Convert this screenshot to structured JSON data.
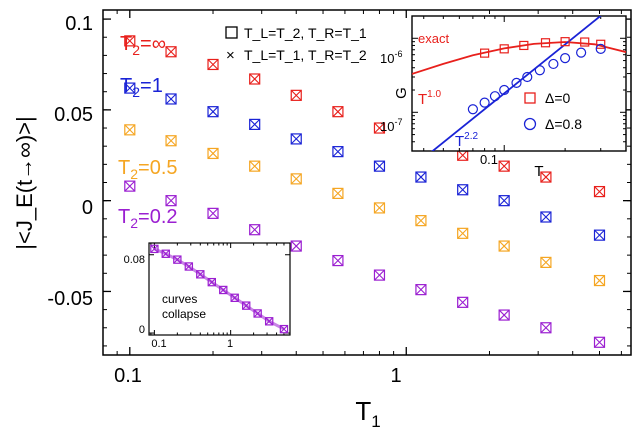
{
  "colors": {
    "inf": "#e8201c",
    "one": "#1a23d6",
    "half": "#f5a623",
    "fifth": "#9b1fd1",
    "curve_exact": "#e8201c",
    "curve_power": "#1a23d6",
    "axis": "#000000"
  },
  "chart_data": [
    {
      "type": "scatter",
      "xlabel": "T1",
      "xlabel_main": "T",
      "xlabel_sub": "1",
      "ylabel": "|<J_E(t→∞)>|",
      "x_scale": "log",
      "xlim": [
        0.08,
        6.5
      ],
      "ylim": [
        -0.085,
        0.105
      ],
      "x_ticks": [
        0.1,
        1
      ],
      "x_tick_labels": [
        "0.1",
        "1"
      ],
      "y_ticks": [
        -0.05,
        0,
        0.05,
        0.1
      ],
      "y_tick_labels": [
        "-0.05",
        "0",
        "0.05",
        "0.1"
      ],
      "legend": {
        "placement": "top-center",
        "entries": [
          {
            "marker": "square",
            "label": "T_L=T_2, T_R=T_1"
          },
          {
            "marker": "x",
            "label": "T_L=T_1, T_R=T_2"
          }
        ]
      },
      "series": [
        {
          "name": "T2=∞",
          "label_main": "T",
          "label_sub": "2",
          "label_value": "=∞",
          "color_key": "inf",
          "x": [
            0.1,
            0.141,
            0.2,
            0.283,
            0.4,
            0.566,
            0.8,
            1.13,
            1.6,
            2.26,
            3.2,
            5.0
          ],
          "y": [
            0.088,
            0.082,
            0.075,
            0.067,
            0.058,
            0.049,
            0.04,
            0.032,
            0.025,
            0.019,
            0.013,
            0.005
          ]
        },
        {
          "name": "T2=1",
          "label_main": "T",
          "label_sub": "2",
          "label_value": "=1",
          "color_key": "one",
          "x": [
            0.1,
            0.141,
            0.2,
            0.283,
            0.4,
            0.566,
            0.8,
            1.13,
            1.6,
            2.26,
            3.2,
            5.0
          ],
          "y": [
            0.062,
            0.056,
            0.049,
            0.042,
            0.034,
            0.027,
            0.019,
            0.013,
            0.006,
            0.0,
            -0.009,
            -0.019
          ]
        },
        {
          "name": "T2=0.5",
          "label_main": "T",
          "label_sub": "2",
          "label_value": "=0.5",
          "color_key": "half",
          "x": [
            0.1,
            0.141,
            0.2,
            0.283,
            0.4,
            0.566,
            0.8,
            1.13,
            1.6,
            2.26,
            3.2,
            5.0
          ],
          "y": [
            0.039,
            0.033,
            0.026,
            0.019,
            0.012,
            0.004,
            -0.004,
            -0.011,
            -0.018,
            -0.025,
            -0.034,
            -0.044
          ]
        },
        {
          "name": "T2=0.2",
          "label_main": "T",
          "label_sub": "2",
          "label_value": "=0.2",
          "color_key": "fifth",
          "x": [
            0.1,
            0.141,
            0.2,
            0.283,
            0.4,
            0.566,
            0.8,
            1.13,
            1.6,
            2.26,
            3.2,
            5.0
          ],
          "y": [
            0.008,
            0.0,
            -0.007,
            -0.016,
            -0.025,
            -0.033,
            -0.041,
            -0.049,
            -0.056,
            -0.063,
            -0.07,
            -0.078
          ]
        }
      ]
    },
    {
      "type": "scatter",
      "xlabel": "T",
      "ylabel": "G",
      "x_scale": "log",
      "y_scale": "log",
      "xlim": [
        0.035,
        0.4
      ],
      "ylim": [
        3e-08,
        2e-06
      ],
      "x_ticks": [
        0.1
      ],
      "x_tick_labels": [
        "0.1"
      ],
      "y_ticks": [
        1e-07,
        1e-06
      ],
      "y_tick_labels_base": [
        "10",
        "10"
      ],
      "y_tick_labels_exp": [
        "-7",
        "-6"
      ],
      "legend": {
        "placement": "bottom-right",
        "entries": [
          {
            "marker": "square",
            "color_key": "inf",
            "label": "Δ=0"
          },
          {
            "marker": "circle",
            "color_key": "one",
            "label": "Δ=0.8"
          }
        ]
      },
      "annotations": {
        "exact": "exact",
        "power_main_1": "T",
        "power_exp_1": "1.0",
        "power_main_2": "T",
        "power_exp_2": "2.2"
      },
      "series": [
        {
          "name": "Δ=0",
          "marker": "square",
          "color_key": "inf",
          "x": [
            0.08,
            0.1,
            0.125,
            0.16,
            0.2,
            0.25,
            0.3
          ],
          "y": [
            6.3e-07,
            7.2e-07,
            8e-07,
            8.7e-07,
            9e-07,
            8.9e-07,
            8.3e-07
          ]
        },
        {
          "name": "Δ=0.8",
          "marker": "circle",
          "color_key": "one",
          "x": [
            0.07,
            0.08,
            0.09,
            0.1,
            0.115,
            0.13,
            0.15,
            0.175,
            0.2,
            0.24,
            0.3
          ],
          "y": [
            1.1e-07,
            1.35e-07,
            1.65e-07,
            2e-07,
            2.5e-07,
            3e-07,
            3.7e-07,
            4.5e-07,
            5.4e-07,
            6.4e-07,
            7.2e-07
          ]
        },
        {
          "name": "exact",
          "type": "line",
          "color_key": "curve_exact",
          "x": [
            0.035,
            0.05,
            0.07,
            0.1,
            0.14,
            0.2,
            0.28,
            0.4
          ],
          "y": [
            3.3e-07,
            4.5e-07,
            5.9e-07,
            7.3e-07,
            8.4e-07,
            8.9e-07,
            8.3e-07,
            6.5e-07
          ]
        },
        {
          "name": "T^2.2",
          "type": "line",
          "color_key": "curve_power",
          "x": [
            0.04,
            0.4
          ],
          "y": [
            2.4e-08,
            3.8e-06
          ]
        }
      ]
    },
    {
      "type": "scatter",
      "x_scale": "log",
      "xlim": [
        0.085,
        6.0
      ],
      "ylim": [
        -0.002,
        0.092
      ],
      "x_ticks": [
        0.1,
        1
      ],
      "x_tick_labels": [
        "0.1",
        "1"
      ],
      "y_ticks": [
        0,
        0.08
      ],
      "y_tick_labels": [
        "0",
        "0.08"
      ],
      "annotation_line1": "curves",
      "annotation_line2": "collapse",
      "series": [
        {
          "name": "collapse",
          "color_key": "fifth",
          "x": [
            0.1,
            0.141,
            0.2,
            0.283,
            0.4,
            0.566,
            0.8,
            1.13,
            1.6,
            2.26,
            3.2,
            5.0
          ],
          "y": [
            0.086,
            0.081,
            0.075,
            0.068,
            0.06,
            0.052,
            0.044,
            0.036,
            0.028,
            0.02,
            0.012,
            0.004
          ]
        }
      ]
    }
  ]
}
